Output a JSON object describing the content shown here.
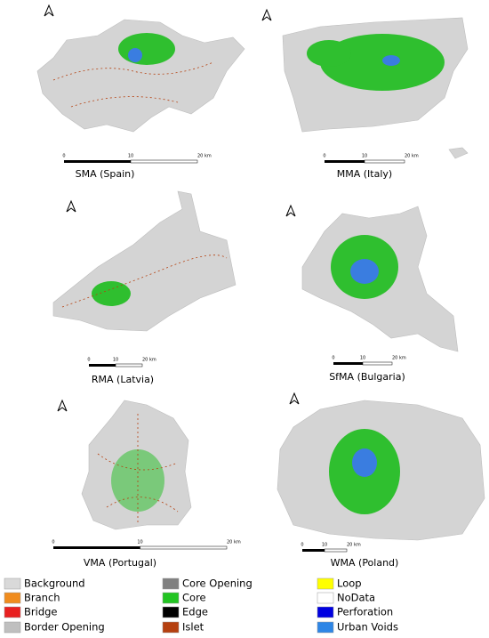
{
  "panels": [
    {
      "caption": "SMA (Spain)",
      "scale_labels": [
        "0",
        "10",
        "20 km"
      ]
    },
    {
      "caption": "MMA (Italy)",
      "scale_labels": [
        "0",
        "10",
        "20 km"
      ]
    },
    {
      "caption": "RMA (Latvia)",
      "scale_labels": [
        "0",
        "10",
        "20 km"
      ]
    },
    {
      "caption": "SfMA (Bulgaria)",
      "scale_labels": [
        "0",
        "10",
        "20 km"
      ]
    },
    {
      "caption": "VMA (Portugal)",
      "scale_labels": [
        "0",
        "10",
        "20 km"
      ]
    },
    {
      "caption": "WMA (Poland)",
      "scale_labels": [
        "0",
        "10",
        "20 km"
      ]
    }
  ],
  "legend": [
    {
      "label": "Background",
      "color": "#d9d9d9"
    },
    {
      "label": "Branch",
      "color": "#f08c1e"
    },
    {
      "label": "Bridge",
      "color": "#e82020"
    },
    {
      "label": "Border Opening",
      "color": "#bfbfbf"
    },
    {
      "label": "Core Opening",
      "color": "#808080"
    },
    {
      "label": "Core",
      "color": "#22c422"
    },
    {
      "label": "Edge",
      "color": "#000000"
    },
    {
      "label": "Islet",
      "color": "#b5400f"
    },
    {
      "label": "Loop",
      "color": "#ffff00"
    },
    {
      "label": "NoData",
      "color": "#ffffff"
    },
    {
      "label": "Perforation",
      "color": "#0000e0"
    },
    {
      "label": "Urban Voids",
      "color": "#2e86e6"
    }
  ]
}
